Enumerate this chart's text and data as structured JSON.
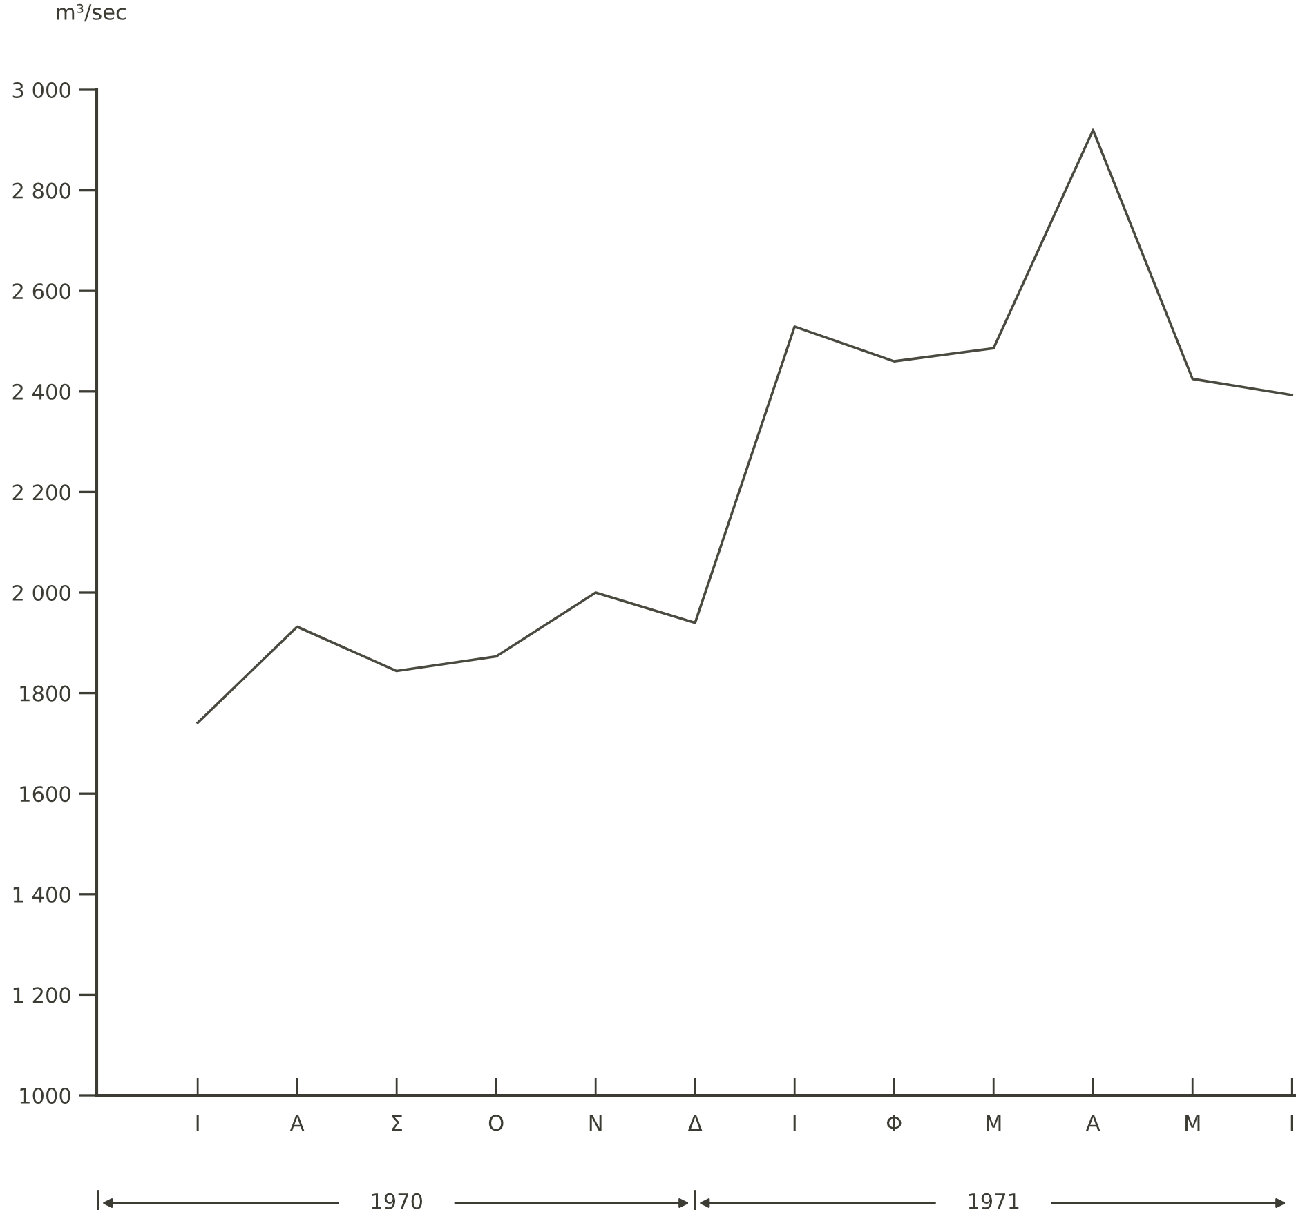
{
  "chart_data": {
    "type": "line",
    "ylabel": "m³/sec",
    "categories": [
      "Ι",
      "Α",
      "Σ",
      "Ο",
      "Ν",
      "Δ",
      "Ι",
      "Φ",
      "Μ",
      "Α",
      "Μ",
      "Ι"
    ],
    "series": [
      {
        "color": "#4a4a40",
        "values": [
          1741,
          1932,
          1844,
          1873,
          2000,
          1940,
          2529,
          2460,
          2486,
          2920,
          2425,
          2393
        ]
      }
    ],
    "ylim": [
      1000,
      3000
    ],
    "yticks": [
      {
        "value": 1000,
        "label": "1000"
      },
      {
        "value": 1200,
        "label": "1 200"
      },
      {
        "value": 1400,
        "label": "1 400"
      },
      {
        "value": 1600,
        "label": "1600"
      },
      {
        "value": 1800,
        "label": "1800"
      },
      {
        "value": 2000,
        "label": "2 000"
      },
      {
        "value": 2200,
        "label": "2 200"
      },
      {
        "value": 2400,
        "label": "2 400"
      },
      {
        "value": 2600,
        "label": "2 600"
      },
      {
        "value": 2800,
        "label": "2 800"
      },
      {
        "value": 3000,
        "label": "3 000"
      }
    ],
    "grid": false,
    "legend": false,
    "marker": "none",
    "line_style": "solid",
    "annotations": [
      "1970",
      "1971"
    ]
  }
}
